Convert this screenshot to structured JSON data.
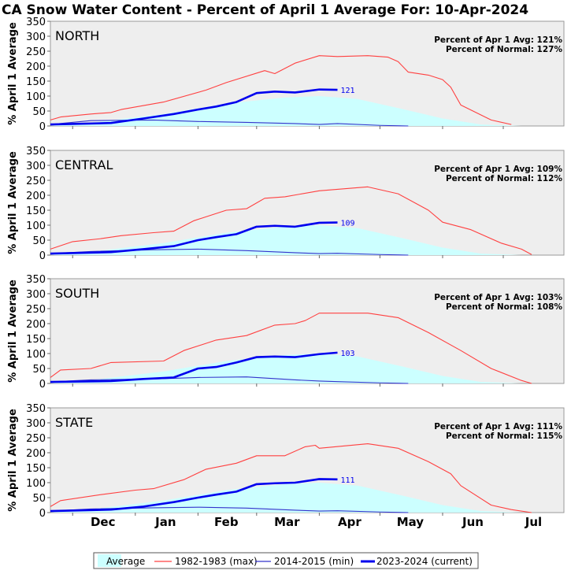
{
  "title": "CA Snow Water Content - Percent of April 1 Average For: 10-Apr-2024",
  "ylabel": "% April 1 Average",
  "month_labels": [
    "Dec",
    "Jan",
    "Feb",
    "Mar",
    "Apr",
    "May",
    "Jun",
    "Jul"
  ],
  "y_ticks": [
    0,
    50,
    100,
    150,
    200,
    250,
    300,
    350
  ],
  "legend": {
    "average": "Average",
    "max": "1982-1983 (max)",
    "min": "2014-2015 (min)",
    "current": "2023-2024 (current)"
  },
  "colors": {
    "average_fill": "#ccffff",
    "max": "#ff4040",
    "min": "#3333cc",
    "current": "#0000ee",
    "plot_bg": "#eeeeee"
  },
  "chart_data": [
    {
      "type": "line",
      "region": "NORTH",
      "ylim": [
        0,
        350
      ],
      "xlim": [
        "2023-11-20",
        "2024-07-31"
      ],
      "stats": [
        "Percent of Apr 1 Avg: 121%",
        "Percent of Normal: 127%"
      ],
      "current_label": "121",
      "series": [
        {
          "name": "Average",
          "x": [
            "2023-11-20",
            "2023-12-15",
            "2024-01-15",
            "2024-02-15",
            "2024-03-15",
            "2024-04-01",
            "2024-04-20",
            "2024-05-10",
            "2024-06-01",
            "2024-06-20",
            "2024-07-10"
          ],
          "values": [
            0,
            15,
            40,
            75,
            95,
            100,
            90,
            60,
            25,
            5,
            0
          ]
        },
        {
          "name": "1982-1983 (max)",
          "x": [
            "2023-11-20",
            "2023-11-25",
            "2023-12-10",
            "2023-12-20",
            "2023-12-25",
            "2024-01-15",
            "2024-02-05",
            "2024-02-15",
            "2024-03-05",
            "2024-03-10",
            "2024-03-20",
            "2024-04-01",
            "2024-04-10",
            "2024-04-25",
            "2024-05-05",
            "2024-05-10",
            "2024-05-15",
            "2024-05-25",
            "2024-06-01",
            "2024-06-05",
            "2024-06-10",
            "2024-06-25",
            "2024-07-05"
          ],
          "values": [
            20,
            30,
            40,
            45,
            55,
            80,
            120,
            145,
            185,
            175,
            210,
            235,
            232,
            235,
            230,
            215,
            180,
            170,
            155,
            130,
            70,
            20,
            5
          ]
        },
        {
          "name": "2014-2015 (min)",
          "x": [
            "2023-11-20",
            "2023-12-10",
            "2024-01-10",
            "2024-02-01",
            "2024-02-25",
            "2024-03-20",
            "2024-04-01",
            "2024-04-10",
            "2024-05-01",
            "2024-05-15"
          ],
          "values": [
            5,
            18,
            20,
            15,
            12,
            8,
            5,
            8,
            2,
            0
          ]
        },
        {
          "name": "2023-2024 (current)",
          "x": [
            "2023-11-20",
            "2023-12-20",
            "2024-01-05",
            "2024-01-20",
            "2024-02-01",
            "2024-02-10",
            "2024-02-20",
            "2024-03-01",
            "2024-03-10",
            "2024-03-20",
            "2024-04-01",
            "2024-04-10"
          ],
          "values": [
            5,
            10,
            25,
            40,
            55,
            65,
            80,
            110,
            115,
            112,
            122,
            121
          ]
        }
      ]
    },
    {
      "type": "line",
      "region": "CENTRAL",
      "ylim": [
        0,
        350
      ],
      "xlim": [
        "2023-11-20",
        "2024-07-31"
      ],
      "stats": [
        "Percent of Apr 1 Avg: 109%",
        "Percent of Normal: 112%"
      ],
      "current_label": "109",
      "series": [
        {
          "name": "Average",
          "x": [
            "2023-11-20",
            "2023-12-15",
            "2024-01-15",
            "2024-02-15",
            "2024-03-15",
            "2024-04-01",
            "2024-04-20",
            "2024-05-10",
            "2024-06-01",
            "2024-06-20",
            "2024-07-10"
          ],
          "values": [
            0,
            15,
            40,
            75,
            95,
            100,
            90,
            60,
            25,
            5,
            0
          ]
        },
        {
          "name": "1982-1983 (max)",
          "x": [
            "2023-11-20",
            "2023-12-01",
            "2023-12-15",
            "2023-12-25",
            "2024-01-10",
            "2024-01-20",
            "2024-01-30",
            "2024-02-15",
            "2024-02-25",
            "2024-03-05",
            "2024-03-15",
            "2024-04-01",
            "2024-04-10",
            "2024-04-25",
            "2024-05-10",
            "2024-05-25",
            "2024-06-01",
            "2024-06-15",
            "2024-06-30",
            "2024-07-10",
            "2024-07-15"
          ],
          "values": [
            20,
            45,
            55,
            65,
            75,
            80,
            115,
            150,
            155,
            190,
            195,
            215,
            220,
            228,
            205,
            150,
            110,
            85,
            40,
            20,
            2
          ]
        },
        {
          "name": "2014-2015 (min)",
          "x": [
            "2023-11-20",
            "2023-12-10",
            "2024-01-10",
            "2024-02-01",
            "2024-02-25",
            "2024-03-20",
            "2024-04-01",
            "2024-04-10",
            "2024-05-01",
            "2024-05-15"
          ],
          "values": [
            5,
            12,
            18,
            20,
            15,
            8,
            5,
            6,
            2,
            0
          ]
        },
        {
          "name": "2023-2024 (current)",
          "x": [
            "2023-11-20",
            "2023-12-20",
            "2024-01-05",
            "2024-01-20",
            "2024-02-01",
            "2024-02-10",
            "2024-02-20",
            "2024-03-01",
            "2024-03-10",
            "2024-03-20",
            "2024-04-01",
            "2024-04-10"
          ],
          "values": [
            5,
            10,
            20,
            30,
            50,
            60,
            70,
            95,
            98,
            95,
            108,
            109
          ]
        }
      ]
    },
    {
      "type": "line",
      "region": "SOUTH",
      "ylim": [
        0,
        350
      ],
      "xlim": [
        "2023-11-20",
        "2024-07-31"
      ],
      "stats": [
        "Percent of Apr 1 Avg: 103%",
        "Percent of Normal: 108%"
      ],
      "current_label": "103",
      "series": [
        {
          "name": "Average",
          "x": [
            "2023-11-20",
            "2023-12-15",
            "2024-01-15",
            "2024-02-15",
            "2024-03-15",
            "2024-04-01",
            "2024-04-20",
            "2024-05-10",
            "2024-06-01",
            "2024-06-20",
            "2024-07-10"
          ],
          "values": [
            0,
            15,
            40,
            75,
            95,
            100,
            90,
            60,
            25,
            5,
            0
          ]
        },
        {
          "name": "1982-1983 (max)",
          "x": [
            "2023-11-20",
            "2023-11-25",
            "2023-12-10",
            "2023-12-20",
            "2024-01-15",
            "2024-01-25",
            "2024-02-10",
            "2024-02-25",
            "2024-03-10",
            "2024-03-20",
            "2024-03-25",
            "2024-04-01",
            "2024-04-25",
            "2024-05-10",
            "2024-05-25",
            "2024-06-10",
            "2024-06-25",
            "2024-07-10",
            "2024-07-15"
          ],
          "values": [
            20,
            45,
            50,
            70,
            75,
            110,
            145,
            160,
            195,
            200,
            210,
            235,
            235,
            220,
            170,
            110,
            50,
            10,
            0
          ]
        },
        {
          "name": "2014-2015 (min)",
          "x": [
            "2023-11-20",
            "2023-12-10",
            "2024-01-10",
            "2024-02-01",
            "2024-02-25",
            "2024-03-20",
            "2024-04-01",
            "2024-04-10",
            "2024-05-01",
            "2024-05-15"
          ],
          "values": [
            5,
            12,
            15,
            20,
            22,
            12,
            8,
            6,
            2,
            0
          ]
        },
        {
          "name": "2023-2024 (current)",
          "x": [
            "2023-11-20",
            "2023-12-20",
            "2024-01-05",
            "2024-01-20",
            "2024-02-01",
            "2024-02-10",
            "2024-02-20",
            "2024-03-01",
            "2024-03-10",
            "2024-03-20",
            "2024-04-01",
            "2024-04-10"
          ],
          "values": [
            5,
            8,
            15,
            20,
            50,
            55,
            70,
            88,
            90,
            88,
            98,
            103
          ]
        }
      ]
    },
    {
      "type": "line",
      "region": "STATE",
      "ylim": [
        0,
        350
      ],
      "xlim": [
        "2023-11-20",
        "2024-07-31"
      ],
      "stats": [
        "Percent of Apr 1 Avg: 111%",
        "Percent of Normal: 115%"
      ],
      "current_label": "111",
      "series": [
        {
          "name": "Average",
          "x": [
            "2023-11-20",
            "2023-12-15",
            "2024-01-15",
            "2024-02-15",
            "2024-03-15",
            "2024-04-01",
            "2024-04-20",
            "2024-05-10",
            "2024-06-01",
            "2024-06-20",
            "2024-07-10"
          ],
          "values": [
            0,
            15,
            40,
            75,
            95,
            100,
            90,
            60,
            25,
            5,
            0
          ]
        },
        {
          "name": "1982-1983 (max)",
          "x": [
            "2023-11-20",
            "2023-11-25",
            "2023-12-15",
            "2024-01-01",
            "2024-01-10",
            "2024-01-25",
            "2024-02-05",
            "2024-02-20",
            "2024-03-01",
            "2024-03-15",
            "2024-03-25",
            "2024-03-30",
            "2024-04-01",
            "2024-04-25",
            "2024-05-10",
            "2024-05-25",
            "2024-06-05",
            "2024-06-10",
            "2024-06-25",
            "2024-07-05",
            "2024-07-15"
          ],
          "values": [
            20,
            40,
            60,
            75,
            80,
            110,
            145,
            165,
            190,
            190,
            220,
            225,
            215,
            230,
            215,
            170,
            130,
            90,
            25,
            10,
            0
          ]
        },
        {
          "name": "2014-2015 (min)",
          "x": [
            "2023-11-20",
            "2023-12-10",
            "2024-01-10",
            "2024-02-01",
            "2024-02-25",
            "2024-03-20",
            "2024-04-01",
            "2024-04-10",
            "2024-05-01",
            "2024-05-15"
          ],
          "values": [
            5,
            12,
            16,
            18,
            15,
            8,
            5,
            6,
            2,
            0
          ]
        },
        {
          "name": "2023-2024 (current)",
          "x": [
            "2023-11-20",
            "2023-12-20",
            "2024-01-05",
            "2024-01-20",
            "2024-02-01",
            "2024-02-10",
            "2024-02-20",
            "2024-03-01",
            "2024-03-10",
            "2024-03-20",
            "2024-04-01",
            "2024-04-10"
          ],
          "values": [
            5,
            10,
            20,
            35,
            50,
            60,
            70,
            95,
            98,
            100,
            112,
            111
          ]
        }
      ]
    }
  ]
}
